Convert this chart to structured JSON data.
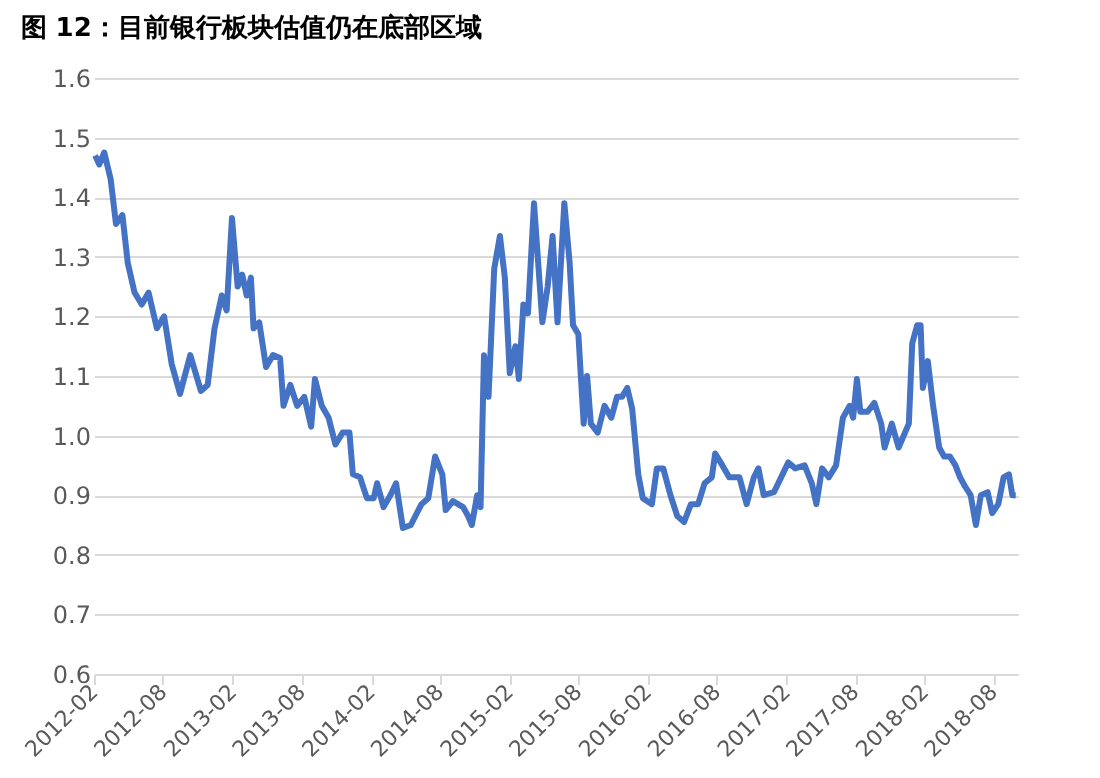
{
  "chart_data": {
    "type": "line",
    "title": "图 12：目前银行板块估值仍在底部区域",
    "x": [
      "2012-02-04",
      "2012-02-15",
      "2012-02-28",
      "2012-03-16",
      "2012-03-30",
      "2012-04-16",
      "2012-04-30",
      "2012-05-18",
      "2012-06-06",
      "2012-06-24",
      "2012-07-16",
      "2012-08-04",
      "2012-08-24",
      "2012-09-15",
      "2012-10-12",
      "2012-11-09",
      "2012-11-27",
      "2012-12-15",
      "2013-01-03",
      "2013-01-16",
      "2013-01-30",
      "2013-02-14",
      "2013-02-26",
      "2013-03-10",
      "2013-03-21",
      "2013-03-28",
      "2013-04-12",
      "2013-04-30",
      "2013-05-18",
      "2013-06-06",
      "2013-06-15",
      "2013-07-03",
      "2013-07-21",
      "2013-08-09",
      "2013-08-27",
      "2013-09-06",
      "2013-09-24",
      "2013-10-12",
      "2013-10-30",
      "2013-11-18",
      "2013-12-06",
      "2013-12-15",
      "2014-01-03",
      "2014-01-21",
      "2014-02-08",
      "2014-02-17",
      "2014-03-06",
      "2014-03-24",
      "2014-04-08",
      "2014-04-26",
      "2014-05-17",
      "2014-06-14",
      "2014-07-02",
      "2014-07-20",
      "2014-08-08",
      "2014-08-17",
      "2014-09-05",
      "2014-10-02",
      "2014-10-15",
      "2014-10-25",
      "2014-11-08",
      "2014-11-17",
      "2014-11-26",
      "2014-12-08",
      "2014-12-23",
      "2015-01-07",
      "2015-01-20",
      "2015-02-02",
      "2015-02-17",
      "2015-02-26",
      "2015-03-10",
      "2015-03-22",
      "2015-04-07",
      "2015-04-29",
      "2015-05-13",
      "2015-05-26",
      "2015-06-08",
      "2015-06-26",
      "2015-07-10",
      "2015-07-19",
      "2015-08-02",
      "2015-08-16",
      "2015-08-25",
      "2015-09-04",
      "2015-09-22",
      "2015-10-10",
      "2015-10-28",
      "2015-11-12",
      "2015-11-25",
      "2015-12-09",
      "2015-12-22",
      "2016-01-07",
      "2016-01-19",
      "2016-02-12",
      "2016-02-25",
      "2016-03-13",
      "2016-04-01",
      "2016-04-19",
      "2016-05-07",
      "2016-05-25",
      "2016-06-13",
      "2016-06-30",
      "2016-07-19",
      "2016-07-28",
      "2016-08-16",
      "2016-09-03",
      "2016-09-30",
      "2016-10-19",
      "2016-11-07",
      "2016-11-19",
      "2016-12-03",
      "2016-12-30",
      "2017-01-18",
      "2017-02-06",
      "2017-02-24",
      "2017-03-21",
      "2017-04-09",
      "2017-04-21",
      "2017-05-06",
      "2017-05-24",
      "2017-06-12",
      "2017-06-30",
      "2017-07-18",
      "2017-07-27",
      "2017-08-06",
      "2017-08-15",
      "2017-09-03",
      "2017-09-21",
      "2017-10-09",
      "2017-10-18",
      "2017-11-06",
      "2017-11-24",
      "2017-12-21",
      "2017-12-30",
      "2018-01-12",
      "2018-01-21",
      "2018-01-27",
      "2018-02-09",
      "2018-02-23",
      "2018-03-11",
      "2018-03-24",
      "2018-04-08",
      "2018-04-23",
      "2018-05-05",
      "2018-05-18",
      "2018-06-02",
      "2018-06-16",
      "2018-06-29",
      "2018-07-17",
      "2018-07-29",
      "2018-08-14",
      "2018-08-28",
      "2018-09-11",
      "2018-09-20",
      "2018-09-29"
    ],
    "series": [
      {
        "color": "#4472c4",
        "values": [
          1.47,
          1.455,
          1.475,
          1.43,
          1.355,
          1.37,
          1.29,
          1.24,
          1.22,
          1.24,
          1.18,
          1.2,
          1.12,
          1.07,
          1.135,
          1.075,
          1.085,
          1.18,
          1.235,
          1.21,
          1.365,
          1.25,
          1.27,
          1.235,
          1.265,
          1.18,
          1.19,
          1.115,
          1.135,
          1.13,
          1.05,
          1.085,
          1.05,
          1.065,
          1.015,
          1.095,
          1.05,
          1.03,
          0.985,
          1.005,
          1.005,
          0.935,
          0.93,
          0.895,
          0.895,
          0.92,
          0.88,
          0.9,
          0.92,
          0.845,
          0.85,
          0.885,
          0.895,
          0.965,
          0.935,
          0.875,
          0.89,
          0.88,
          0.865,
          0.85,
          0.9,
          0.88,
          1.135,
          1.065,
          1.28,
          1.335,
          1.265,
          1.105,
          1.15,
          1.095,
          1.22,
          1.205,
          1.39,
          1.19,
          1.25,
          1.335,
          1.19,
          1.39,
          1.29,
          1.185,
          1.17,
          1.02,
          1.1,
          1.02,
          1.005,
          1.05,
          1.03,
          1.065,
          1.065,
          1.08,
          1.045,
          0.935,
          0.895,
          0.885,
          0.945,
          0.945,
          0.9,
          0.865,
          0.855,
          0.885,
          0.885,
          0.92,
          0.93,
          0.97,
          0.95,
          0.93,
          0.93,
          0.885,
          0.93,
          0.945,
          0.9,
          0.905,
          0.93,
          0.955,
          0.945,
          0.95,
          0.92,
          0.885,
          0.945,
          0.93,
          0.95,
          1.03,
          1.05,
          1.03,
          1.095,
          1.04,
          1.04,
          1.055,
          1.02,
          0.98,
          1.02,
          0.98,
          1.02,
          1.155,
          1.185,
          1.185,
          1.08,
          1.125,
          1.05,
          0.98,
          0.965,
          0.965,
          0.95,
          0.93,
          0.915,
          0.9,
          0.85,
          0.9,
          0.905,
          0.87,
          0.885,
          0.93,
          0.935,
          0.9,
          0.9
        ]
      }
    ],
    "xlim": [
      "2012-02-01",
      "2018-10-05"
    ],
    "xticks": [
      "2012-02",
      "2012-08",
      "2013-02",
      "2013-08",
      "2014-02",
      "2014-08",
      "2015-02",
      "2015-08",
      "2016-02",
      "2016-08",
      "2017-02",
      "2017-08",
      "2018-02",
      "2018-08"
    ],
    "ylim": [
      0.6,
      1.6
    ],
    "yticks": [
      {
        "value": 0.6,
        "label": "0.6"
      },
      {
        "value": 0.7,
        "label": "0.7"
      },
      {
        "value": 0.8,
        "label": "0.8"
      },
      {
        "value": 0.9,
        "label": "0.9"
      },
      {
        "value": 1,
        "label": "1.0"
      },
      {
        "value": 1.1,
        "label": "1.1"
      },
      {
        "value": 1.2,
        "label": "1.2"
      },
      {
        "value": 1.3,
        "label": "1.3"
      },
      {
        "value": 1.4,
        "label": "1.4"
      },
      {
        "value": 1.5,
        "label": "1.5"
      },
      {
        "value": 1.6,
        "label": "1.6"
      }
    ],
    "grid": "y",
    "marker": "none",
    "line_style": "solid"
  }
}
